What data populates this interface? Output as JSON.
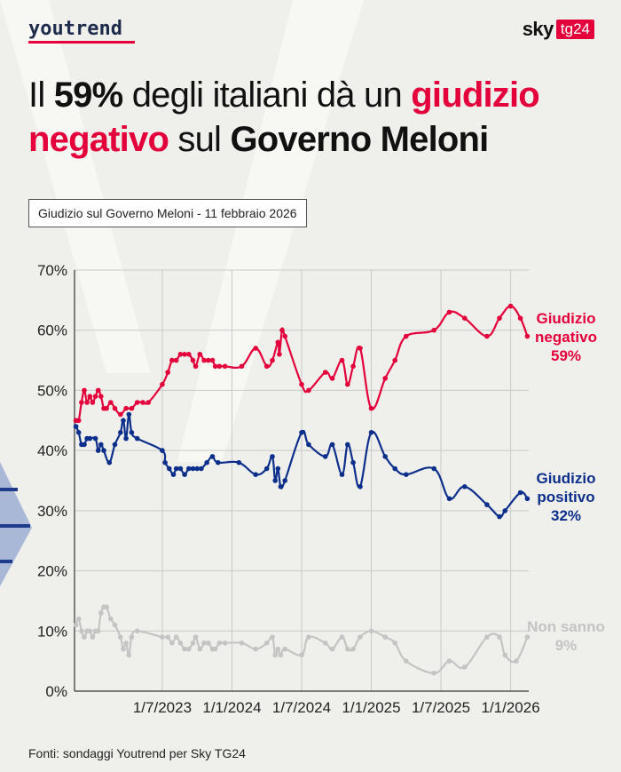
{
  "header": {
    "logo_left": "youtrend",
    "logo_right_word": "sky",
    "logo_right_badge": "tg24"
  },
  "headline": {
    "p1": "Il ",
    "p2": "59%",
    "p3": " degli italiani dà un ",
    "p4": "giudizio negativo",
    "p5": " sul ",
    "p6": "Governo Meloni"
  },
  "subtitle": "Giudizio sul Governo Meloni - 11 febbraio 2026",
  "footer": "Fonti: sondaggi Youtrend per Sky TG24",
  "colors": {
    "negative": "#e4003a",
    "positive": "#0d2f8c",
    "unknown": "#c4c4c4",
    "background": "#efefeb",
    "grid": "#c9c9c9"
  },
  "chart_data": {
    "type": "line",
    "title": "Giudizio sul Governo Meloni - 11 febbraio 2026",
    "xlabel": "",
    "ylabel": "",
    "xlim": [
      2022.87,
      2026.13
    ],
    "ylim": [
      0,
      70
    ],
    "y_ticks": [
      "0%",
      "10%",
      "20%",
      "30%",
      "40%",
      "50%",
      "60%",
      "70%"
    ],
    "y_tick_values": [
      0,
      10,
      20,
      30,
      40,
      50,
      60,
      70
    ],
    "x_ticks": [
      "1/7/2023",
      "1/1/2024",
      "1/7/2024",
      "1/1/2025",
      "1/7/2025",
      "1/1/2026"
    ],
    "x_tick_values": [
      2023.5,
      2024.0,
      2024.5,
      2025.0,
      2025.5,
      2026.0
    ],
    "series": [
      {
        "name": "Giudizio negativo",
        "label_lines": [
          "Giudizio",
          "negativo",
          "59%"
        ],
        "color": "#e4003a",
        "points": [
          [
            2022.88,
            45
          ],
          [
            2022.9,
            45
          ],
          [
            2022.92,
            48
          ],
          [
            2022.94,
            50
          ],
          [
            2022.96,
            48
          ],
          [
            2022.98,
            49
          ],
          [
            2023.0,
            48
          ],
          [
            2023.02,
            49
          ],
          [
            2023.04,
            50
          ],
          [
            2023.06,
            49
          ],
          [
            2023.08,
            47
          ],
          [
            2023.1,
            47
          ],
          [
            2023.13,
            48
          ],
          [
            2023.16,
            47
          ],
          [
            2023.2,
            46
          ],
          [
            2023.24,
            47
          ],
          [
            2023.28,
            47
          ],
          [
            2023.32,
            48
          ],
          [
            2023.36,
            48
          ],
          [
            2023.4,
            48
          ],
          [
            2023.5,
            51
          ],
          [
            2023.54,
            53
          ],
          [
            2023.57,
            55
          ],
          [
            2023.6,
            55
          ],
          [
            2023.63,
            56
          ],
          [
            2023.66,
            56
          ],
          [
            2023.69,
            56
          ],
          [
            2023.72,
            55
          ],
          [
            2023.74,
            54
          ],
          [
            2023.77,
            56
          ],
          [
            2023.8,
            55
          ],
          [
            2023.83,
            55
          ],
          [
            2023.86,
            55
          ],
          [
            2023.88,
            54
          ],
          [
            2023.91,
            54
          ],
          [
            2023.95,
            54
          ],
          [
            2024.07,
            54
          ],
          [
            2024.17,
            57
          ],
          [
            2024.25,
            54
          ],
          [
            2024.29,
            55
          ],
          [
            2024.33,
            58
          ],
          [
            2024.34,
            56
          ],
          [
            2024.36,
            60
          ],
          [
            2024.38,
            59
          ],
          [
            2024.5,
            51
          ],
          [
            2024.55,
            50
          ],
          [
            2024.67,
            53
          ],
          [
            2024.72,
            52
          ],
          [
            2024.79,
            55
          ],
          [
            2024.83,
            51
          ],
          [
            2024.87,
            54
          ],
          [
            2024.92,
            57
          ],
          [
            2025.0,
            47
          ],
          [
            2025.1,
            52
          ],
          [
            2025.17,
            55
          ],
          [
            2025.25,
            59
          ],
          [
            2025.45,
            60
          ],
          [
            2025.56,
            63
          ],
          [
            2025.67,
            62
          ],
          [
            2025.83,
            59
          ],
          [
            2025.92,
            62
          ],
          [
            2026.0,
            64
          ],
          [
            2026.07,
            62
          ],
          [
            2026.12,
            59
          ]
        ]
      },
      {
        "name": "Giudizio positivo",
        "label_lines": [
          "Giudizio",
          "positivo",
          "32%"
        ],
        "color": "#0d2f8c",
        "points": [
          [
            2022.88,
            44
          ],
          [
            2022.9,
            43
          ],
          [
            2022.92,
            41
          ],
          [
            2022.94,
            41
          ],
          [
            2022.96,
            42
          ],
          [
            2022.98,
            42
          ],
          [
            2023.02,
            42
          ],
          [
            2023.04,
            40
          ],
          [
            2023.06,
            41
          ],
          [
            2023.08,
            40
          ],
          [
            2023.12,
            38
          ],
          [
            2023.16,
            41
          ],
          [
            2023.2,
            43
          ],
          [
            2023.22,
            45
          ],
          [
            2023.24,
            42
          ],
          [
            2023.26,
            46
          ],
          [
            2023.28,
            43
          ],
          [
            2023.32,
            42
          ],
          [
            2023.5,
            40
          ],
          [
            2023.52,
            38
          ],
          [
            2023.55,
            37
          ],
          [
            2023.58,
            36
          ],
          [
            2023.6,
            37
          ],
          [
            2023.63,
            37
          ],
          [
            2023.66,
            36
          ],
          [
            2023.69,
            37
          ],
          [
            2023.72,
            37
          ],
          [
            2023.75,
            37
          ],
          [
            2023.78,
            37
          ],
          [
            2023.82,
            38
          ],
          [
            2023.86,
            39
          ],
          [
            2023.9,
            38
          ],
          [
            2024.05,
            38
          ],
          [
            2024.17,
            36
          ],
          [
            2024.25,
            37
          ],
          [
            2024.29,
            39
          ],
          [
            2024.31,
            35
          ],
          [
            2024.33,
            37
          ],
          [
            2024.35,
            34
          ],
          [
            2024.38,
            35
          ],
          [
            2024.5,
            43
          ],
          [
            2024.55,
            41
          ],
          [
            2024.67,
            39
          ],
          [
            2024.72,
            41
          ],
          [
            2024.79,
            36
          ],
          [
            2024.83,
            41
          ],
          [
            2024.87,
            38
          ],
          [
            2024.92,
            34
          ],
          [
            2025.0,
            43
          ],
          [
            2025.1,
            39
          ],
          [
            2025.17,
            37
          ],
          [
            2025.25,
            36
          ],
          [
            2025.45,
            37
          ],
          [
            2025.56,
            32
          ],
          [
            2025.67,
            34
          ],
          [
            2025.83,
            31
          ],
          [
            2025.92,
            29
          ],
          [
            2025.96,
            30
          ],
          [
            2026.07,
            33
          ],
          [
            2026.12,
            32
          ]
        ]
      },
      {
        "name": "Non sanno",
        "label_lines": [
          "Non sanno",
          "9%"
        ],
        "color": "#c4c4c4",
        "points": [
          [
            2022.88,
            11
          ],
          [
            2022.9,
            12
          ],
          [
            2022.92,
            10
          ],
          [
            2022.94,
            9
          ],
          [
            2022.96,
            10
          ],
          [
            2022.98,
            10
          ],
          [
            2023.0,
            9
          ],
          [
            2023.02,
            10
          ],
          [
            2023.04,
            10
          ],
          [
            2023.06,
            13
          ],
          [
            2023.08,
            14
          ],
          [
            2023.1,
            14
          ],
          [
            2023.13,
            12
          ],
          [
            2023.16,
            11
          ],
          [
            2023.2,
            9
          ],
          [
            2023.22,
            7
          ],
          [
            2023.24,
            8
          ],
          [
            2023.26,
            6
          ],
          [
            2023.28,
            9
          ],
          [
            2023.32,
            10
          ],
          [
            2023.5,
            9
          ],
          [
            2023.54,
            9
          ],
          [
            2023.57,
            8
          ],
          [
            2023.6,
            9
          ],
          [
            2023.63,
            8
          ],
          [
            2023.66,
            7
          ],
          [
            2023.69,
            7
          ],
          [
            2023.72,
            8
          ],
          [
            2023.74,
            9
          ],
          [
            2023.77,
            7
          ],
          [
            2023.8,
            8
          ],
          [
            2023.83,
            8
          ],
          [
            2023.86,
            7
          ],
          [
            2023.88,
            7
          ],
          [
            2023.91,
            8
          ],
          [
            2023.95,
            8
          ],
          [
            2024.07,
            8
          ],
          [
            2024.17,
            7
          ],
          [
            2024.25,
            8
          ],
          [
            2024.29,
            9
          ],
          [
            2024.31,
            6
          ],
          [
            2024.33,
            7
          ],
          [
            2024.35,
            6
          ],
          [
            2024.38,
            7
          ],
          [
            2024.5,
            6
          ],
          [
            2024.55,
            9
          ],
          [
            2024.67,
            8
          ],
          [
            2024.72,
            7
          ],
          [
            2024.79,
            9
          ],
          [
            2024.83,
            7
          ],
          [
            2024.87,
            7
          ],
          [
            2024.92,
            9
          ],
          [
            2025.0,
            10
          ],
          [
            2025.1,
            9
          ],
          [
            2025.17,
            8
          ],
          [
            2025.25,
            5
          ],
          [
            2025.45,
            3
          ],
          [
            2025.56,
            5
          ],
          [
            2025.67,
            4
          ],
          [
            2025.83,
            9
          ],
          [
            2025.92,
            9
          ],
          [
            2025.96,
            6
          ],
          [
            2026.04,
            5
          ],
          [
            2026.12,
            9
          ]
        ]
      }
    ]
  }
}
